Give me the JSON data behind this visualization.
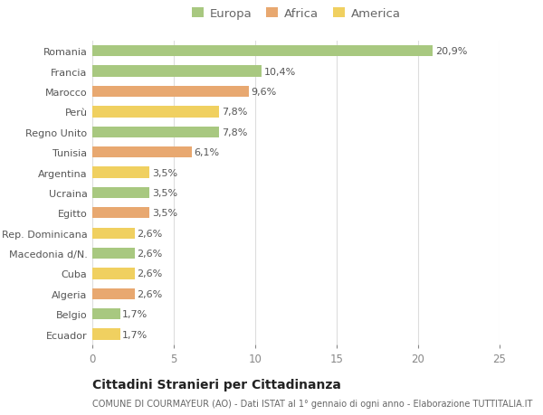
{
  "categories": [
    "Romania",
    "Francia",
    "Marocco",
    "Perù",
    "Regno Unito",
    "Tunisia",
    "Argentina",
    "Ucraina",
    "Egitto",
    "Rep. Dominicana",
    "Macedonia d/N.",
    "Cuba",
    "Algeria",
    "Belgio",
    "Ecuador"
  ],
  "values": [
    20.9,
    10.4,
    9.6,
    7.8,
    7.8,
    6.1,
    3.5,
    3.5,
    3.5,
    2.6,
    2.6,
    2.6,
    2.6,
    1.7,
    1.7
  ],
  "labels": [
    "20,9%",
    "10,4%",
    "9,6%",
    "7,8%",
    "7,8%",
    "6,1%",
    "3,5%",
    "3,5%",
    "3,5%",
    "2,6%",
    "2,6%",
    "2,6%",
    "2,6%",
    "1,7%",
    "1,7%"
  ],
  "colors": [
    "#a8c880",
    "#a8c880",
    "#e8a870",
    "#f0d060",
    "#a8c880",
    "#e8a870",
    "#f0d060",
    "#a8c880",
    "#e8a870",
    "#f0d060",
    "#a8c880",
    "#f0d060",
    "#e8a870",
    "#a8c880",
    "#f0d060"
  ],
  "continent_colors": {
    "Europa": "#a8c880",
    "Africa": "#e8a870",
    "America": "#f0d060"
  },
  "xlim": [
    0,
    25
  ],
  "xticks": [
    0,
    5,
    10,
    15,
    20,
    25
  ],
  "title": "Cittadini Stranieri per Cittadinanza",
  "subtitle": "COMUNE DI COURMAYEUR (AO) - Dati ISTAT al 1° gennaio di ogni anno - Elaborazione TUTTITALIA.IT",
  "bg_color": "#ffffff",
  "grid_color": "#dddddd",
  "bar_height": 0.55,
  "label_fontsize": 8,
  "ytick_fontsize": 8,
  "xtick_fontsize": 8.5,
  "legend_fontsize": 9.5,
  "title_fontsize": 10,
  "subtitle_fontsize": 7
}
